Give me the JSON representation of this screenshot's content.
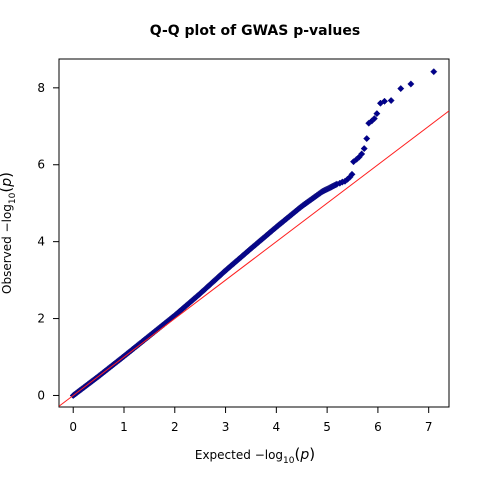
{
  "chart_data": {
    "type": "scatter",
    "title": "Q-Q plot of GWAS p-values",
    "xlabel": {
      "prefix": "Expected  ",
      "minus": "−",
      "log": "log",
      "sub": "10",
      "open": "(",
      "var": "p",
      "close": ")"
    },
    "ylabel": {
      "prefix": "Observed  ",
      "minus": "−",
      "log": "log",
      "sub": "10",
      "open": "(",
      "var": "p",
      "close": ")"
    },
    "xlim": [
      -0.28,
      7.4
    ],
    "ylim": [
      -0.3,
      8.75
    ],
    "xticks": [
      0,
      1,
      2,
      3,
      4,
      5,
      6,
      7
    ],
    "yticks": [
      0,
      2,
      4,
      6,
      8
    ],
    "xtick_labels": [
      "0",
      "1",
      "2",
      "3",
      "4",
      "5",
      "6",
      "7"
    ],
    "ytick_labels": [
      "0",
      "2",
      "4",
      "6",
      "8"
    ],
    "reference_line": {
      "slope": 1,
      "intercept": 0,
      "color": "#ff2020"
    },
    "point_color": "#00008b",
    "point_stroke": "#1a1a80",
    "curve_knots": [
      [
        0.0,
        0.0
      ],
      [
        0.5,
        0.5
      ],
      [
        1.0,
        1.02
      ],
      [
        1.5,
        1.55
      ],
      [
        2.0,
        2.08
      ],
      [
        2.5,
        2.65
      ],
      [
        3.0,
        3.25
      ],
      [
        3.5,
        3.82
      ],
      [
        4.0,
        4.38
      ],
      [
        4.5,
        4.92
      ],
      [
        4.9,
        5.3
      ],
      [
        5.2,
        5.5
      ]
    ],
    "tail_points": [
      [
        5.25,
        5.52
      ],
      [
        5.3,
        5.55
      ],
      [
        5.35,
        5.57
      ],
      [
        5.4,
        5.62
      ],
      [
        5.45,
        5.68
      ],
      [
        5.49,
        5.75
      ],
      [
        5.52,
        6.08
      ],
      [
        5.58,
        6.14
      ],
      [
        5.63,
        6.2
      ],
      [
        5.68,
        6.28
      ],
      [
        5.73,
        6.42
      ],
      [
        5.78,
        6.68
      ],
      [
        5.82,
        7.08
      ],
      [
        5.88,
        7.14
      ],
      [
        5.93,
        7.2
      ],
      [
        5.98,
        7.33
      ],
      [
        6.05,
        7.6
      ],
      [
        6.13,
        7.65
      ],
      [
        6.26,
        7.67
      ],
      [
        6.45,
        7.98
      ],
      [
        6.65,
        8.1
      ],
      [
        7.1,
        8.42
      ]
    ]
  }
}
